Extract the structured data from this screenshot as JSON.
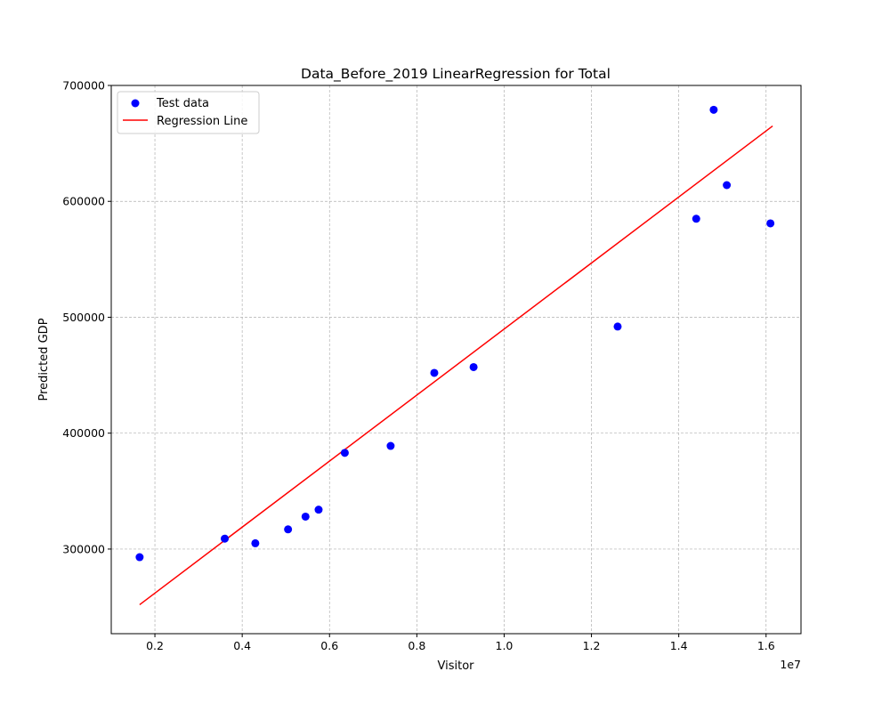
{
  "chart_data": {
    "type": "scatter",
    "title": "Data_Before_2019 LinearRegression for Total",
    "xlabel": "Visitor",
    "ylabel": "Predicted GDP",
    "x_offset_text": "1e7",
    "x_multiplier": 10000000,
    "xlim": [
      1000000,
      16800000
    ],
    "ylim": [
      227000,
      700000
    ],
    "x_ticks": [
      0.2,
      0.4,
      0.6,
      0.8,
      1.0,
      1.2,
      1.4,
      1.6
    ],
    "x_tick_labels": [
      "0.2",
      "0.4",
      "0.6",
      "0.8",
      "1.0",
      "1.2",
      "1.4",
      "1.6"
    ],
    "y_ticks": [
      300000,
      400000,
      500000,
      600000,
      700000
    ],
    "y_tick_labels": [
      "300000",
      "400000",
      "500000",
      "600000",
      "700000"
    ],
    "grid": true,
    "legend_position": "upper-left",
    "series": [
      {
        "name": "Test data",
        "kind": "scatter",
        "color": "#0000ff",
        "points": [
          [
            1650000,
            293000
          ],
          [
            3600000,
            309000
          ],
          [
            4300000,
            305000
          ],
          [
            5050000,
            317000
          ],
          [
            5450000,
            328000
          ],
          [
            5750000,
            334000
          ],
          [
            6350000,
            383000
          ],
          [
            7400000,
            389000
          ],
          [
            8400000,
            452000
          ],
          [
            9300000,
            457000
          ],
          [
            12600000,
            492000
          ],
          [
            14400000,
            585000
          ],
          [
            14800000,
            679000
          ],
          [
            15100000,
            614000
          ],
          [
            16100000,
            581000
          ]
        ]
      },
      {
        "name": "Regression Line",
        "kind": "line",
        "color": "#ff0000",
        "points": [
          [
            1650000,
            252000
          ],
          [
            16150000,
            665000
          ]
        ]
      }
    ]
  }
}
